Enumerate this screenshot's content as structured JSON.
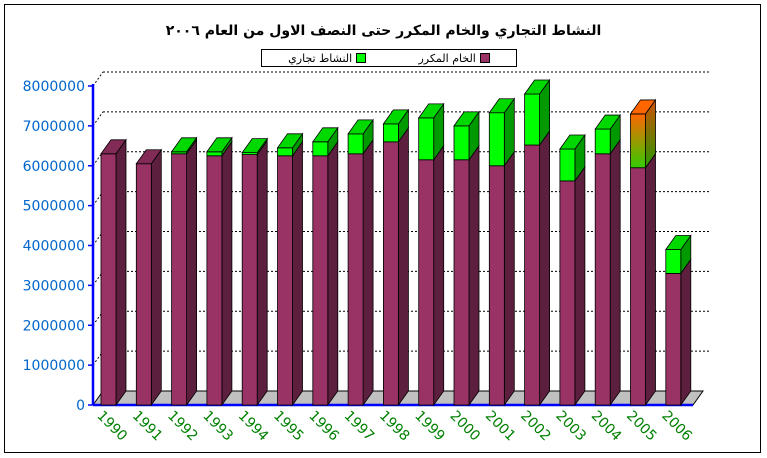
{
  "chart_data": {
    "type": "bar",
    "stacked": true,
    "three_d": true,
    "title": "النشاط التجاري والخام المكرر حتى النصف الاول من العام ٢٠٠٦",
    "legend_position": "top",
    "categories": [
      "1990",
      "1991",
      "1992",
      "1993",
      "1994",
      "1995",
      "1996",
      "1997",
      "1998",
      "1999",
      "2000",
      "2001",
      "2002",
      "2003",
      "2004",
      "2005",
      "2006"
    ],
    "series": [
      {
        "name": "الخام المكرر",
        "color": "#993366",
        "values": [
          6300000,
          6050000,
          6300000,
          6250000,
          6280000,
          6250000,
          6250000,
          6300000,
          6600000,
          6150000,
          6150000,
          6000000,
          6520000,
          5620000,
          6300000,
          5950000,
          3300000
        ]
      },
      {
        "name": "النشاط تجاري",
        "color": "#00ff00",
        "values": [
          0,
          0,
          50000,
          100000,
          50000,
          200000,
          350000,
          500000,
          450000,
          1050000,
          850000,
          1330000,
          1280000,
          800000,
          620000,
          1350000,
          600000
        ]
      }
    ],
    "highlight_bar": {
      "category": "2005",
      "series": "النشاط تجاري",
      "colors": [
        "#ff6600",
        "#33cc00"
      ]
    },
    "ylim": [
      0,
      8000000
    ],
    "yticks": [
      0,
      1000000,
      2000000,
      3000000,
      4000000,
      5000000,
      6000000,
      7000000,
      8000000
    ],
    "ytick_color": "#0066cc",
    "xtick_color": "#008000",
    "axis_color": "#0000ff",
    "grid": true,
    "floor_color": "#c0c0c0"
  }
}
